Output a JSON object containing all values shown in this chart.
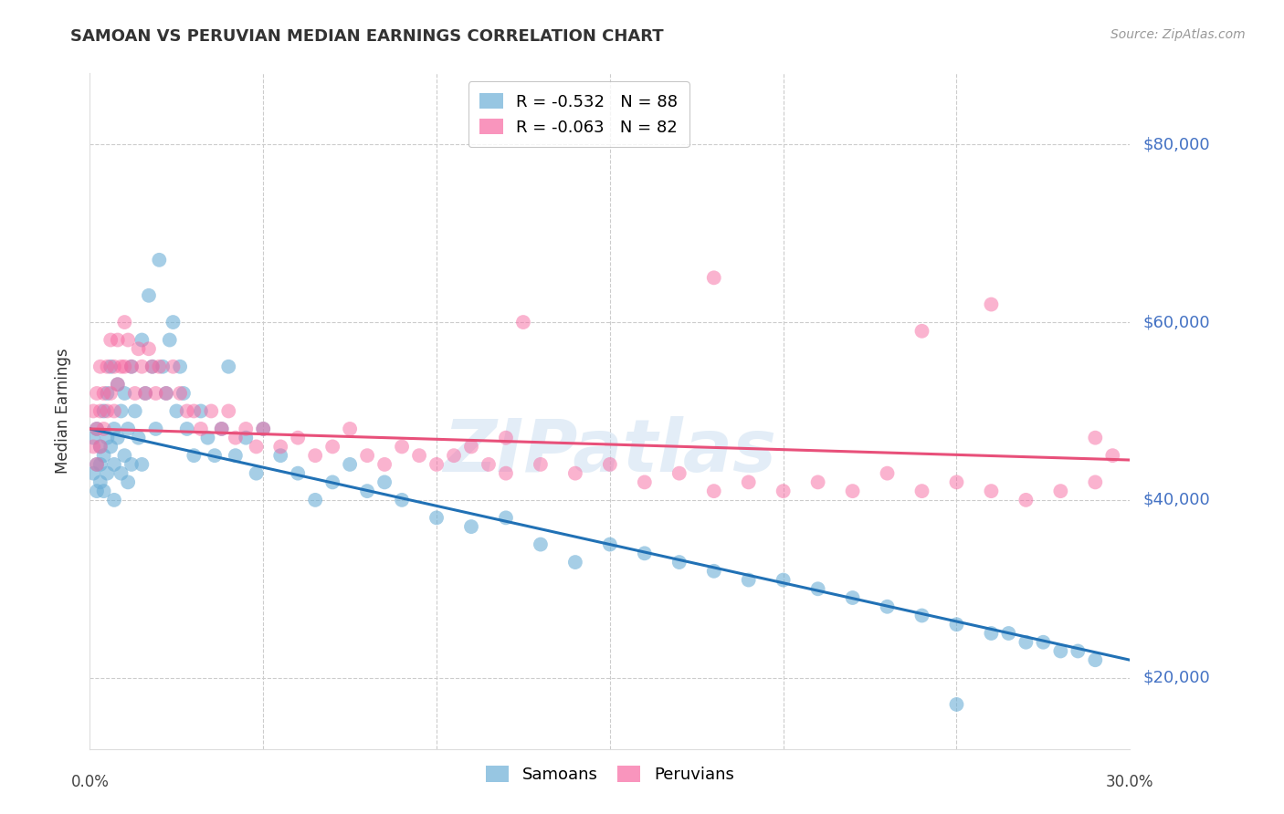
{
  "title": "SAMOAN VS PERUVIAN MEDIAN EARNINGS CORRELATION CHART",
  "source": "Source: ZipAtlas.com",
  "ylabel": "Median Earnings",
  "watermark": "ZIPatlas",
  "legend_entries": [
    {
      "label": "R = -0.532   N = 88",
      "color": "#6baed6"
    },
    {
      "label": "R = -0.063   N = 82",
      "color": "#f768a1"
    }
  ],
  "legend_bottom": [
    "Samoans",
    "Peruvians"
  ],
  "ytick_labels": [
    "$20,000",
    "$40,000",
    "$60,000",
    "$80,000"
  ],
  "ytick_values": [
    20000,
    40000,
    60000,
    80000
  ],
  "ymin": 12000,
  "ymax": 88000,
  "xmin": 0.0,
  "xmax": 0.3,
  "blue_color": "#6baed6",
  "pink_color": "#f768a1",
  "blue_scatter_alpha": 0.6,
  "pink_scatter_alpha": 0.5,
  "scatter_size": 130,
  "blue_line_color": "#2171b5",
  "pink_line_color": "#e8507a",
  "grid_color": "#cccccc",
  "background_color": "#ffffff",
  "samoans_x": [
    0.001,
    0.001,
    0.002,
    0.002,
    0.002,
    0.003,
    0.003,
    0.003,
    0.004,
    0.004,
    0.004,
    0.005,
    0.005,
    0.005,
    0.006,
    0.006,
    0.007,
    0.007,
    0.007,
    0.008,
    0.008,
    0.009,
    0.009,
    0.01,
    0.01,
    0.011,
    0.011,
    0.012,
    0.012,
    0.013,
    0.014,
    0.015,
    0.015,
    0.016,
    0.017,
    0.018,
    0.019,
    0.02,
    0.021,
    0.022,
    0.023,
    0.024,
    0.025,
    0.026,
    0.027,
    0.028,
    0.03,
    0.032,
    0.034,
    0.036,
    0.038,
    0.04,
    0.042,
    0.045,
    0.048,
    0.05,
    0.055,
    0.06,
    0.065,
    0.07,
    0.075,
    0.08,
    0.085,
    0.09,
    0.1,
    0.11,
    0.12,
    0.13,
    0.14,
    0.15,
    0.16,
    0.17,
    0.18,
    0.19,
    0.2,
    0.21,
    0.22,
    0.23,
    0.24,
    0.25,
    0.26,
    0.265,
    0.27,
    0.275,
    0.28,
    0.285,
    0.29,
    0.25
  ],
  "samoans_y": [
    47000,
    43000,
    48000,
    44000,
    41000,
    46000,
    44000,
    42000,
    50000,
    45000,
    41000,
    52000,
    47000,
    43000,
    55000,
    46000,
    48000,
    44000,
    40000,
    53000,
    47000,
    50000,
    43000,
    52000,
    45000,
    48000,
    42000,
    55000,
    44000,
    50000,
    47000,
    58000,
    44000,
    52000,
    63000,
    55000,
    48000,
    67000,
    55000,
    52000,
    58000,
    60000,
    50000,
    55000,
    52000,
    48000,
    45000,
    50000,
    47000,
    45000,
    48000,
    55000,
    45000,
    47000,
    43000,
    48000,
    45000,
    43000,
    40000,
    42000,
    44000,
    41000,
    42000,
    40000,
    38000,
    37000,
    38000,
    35000,
    33000,
    35000,
    34000,
    33000,
    32000,
    31000,
    31000,
    30000,
    29000,
    28000,
    27000,
    26000,
    25000,
    25000,
    24000,
    24000,
    23000,
    23000,
    22000,
    17000
  ],
  "peruvians_x": [
    0.001,
    0.001,
    0.002,
    0.002,
    0.002,
    0.003,
    0.003,
    0.003,
    0.004,
    0.004,
    0.005,
    0.005,
    0.006,
    0.006,
    0.007,
    0.007,
    0.008,
    0.008,
    0.009,
    0.01,
    0.01,
    0.011,
    0.012,
    0.013,
    0.014,
    0.015,
    0.016,
    0.017,
    0.018,
    0.019,
    0.02,
    0.022,
    0.024,
    0.026,
    0.028,
    0.03,
    0.032,
    0.035,
    0.038,
    0.04,
    0.042,
    0.045,
    0.048,
    0.05,
    0.055,
    0.06,
    0.065,
    0.07,
    0.075,
    0.08,
    0.085,
    0.09,
    0.095,
    0.1,
    0.105,
    0.11,
    0.115,
    0.12,
    0.125,
    0.13,
    0.14,
    0.15,
    0.16,
    0.17,
    0.18,
    0.19,
    0.2,
    0.21,
    0.22,
    0.23,
    0.24,
    0.25,
    0.26,
    0.27,
    0.28,
    0.29,
    0.295,
    0.29,
    0.26,
    0.24,
    0.18,
    0.12
  ],
  "peruvians_y": [
    50000,
    46000,
    52000,
    48000,
    44000,
    55000,
    50000,
    46000,
    52000,
    48000,
    55000,
    50000,
    58000,
    52000,
    55000,
    50000,
    58000,
    53000,
    55000,
    60000,
    55000,
    58000,
    55000,
    52000,
    57000,
    55000,
    52000,
    57000,
    55000,
    52000,
    55000,
    52000,
    55000,
    52000,
    50000,
    50000,
    48000,
    50000,
    48000,
    50000,
    47000,
    48000,
    46000,
    48000,
    46000,
    47000,
    45000,
    46000,
    48000,
    45000,
    44000,
    46000,
    45000,
    44000,
    45000,
    46000,
    44000,
    43000,
    60000,
    44000,
    43000,
    44000,
    42000,
    43000,
    41000,
    42000,
    41000,
    42000,
    41000,
    43000,
    41000,
    42000,
    41000,
    40000,
    41000,
    42000,
    45000,
    47000,
    62000,
    59000,
    65000,
    47000
  ],
  "blue_line_x": [
    0.0,
    0.3
  ],
  "blue_line_y": [
    48000,
    22000
  ],
  "pink_line_x": [
    0.0,
    0.3
  ],
  "pink_line_y": [
    48000,
    44500
  ]
}
